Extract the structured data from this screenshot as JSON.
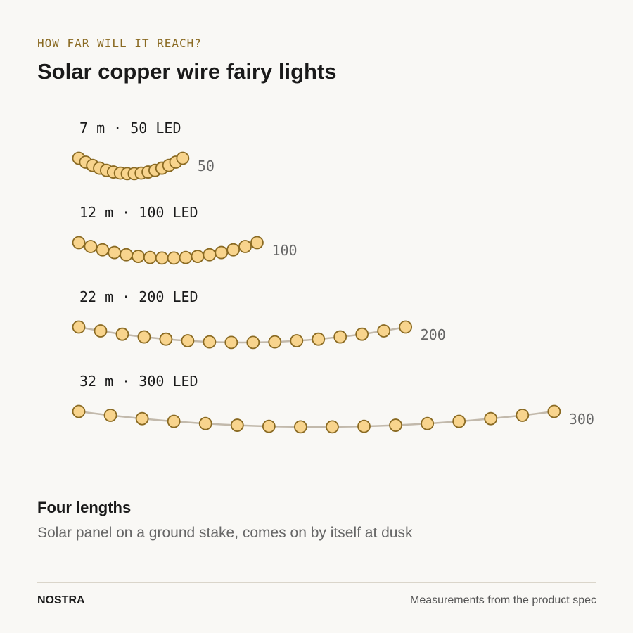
{
  "chart_data": {
    "type": "string-lights",
    "eyebrow": "HOW FAR WILL IT REACH?",
    "title": "Solar copper wire fairy lights",
    "categories": [
      "7 m · 50 LED",
      "12 m · 100 LED",
      "22 m · 200 LED",
      "32 m · 300 LED"
    ],
    "lengths": [
      7,
      12,
      22,
      32
    ],
    "leds": [
      50,
      100,
      200,
      300
    ],
    "color": "#f8d48d",
    "outline": "#8a6a22",
    "wire": "#c2b9ab",
    "subtitle": "Four lengths",
    "note": "Solar panel on a ground stake, comes on by itself at dusk",
    "brand": "NOSTRA",
    "source": "Measurements from the product spec"
  }
}
